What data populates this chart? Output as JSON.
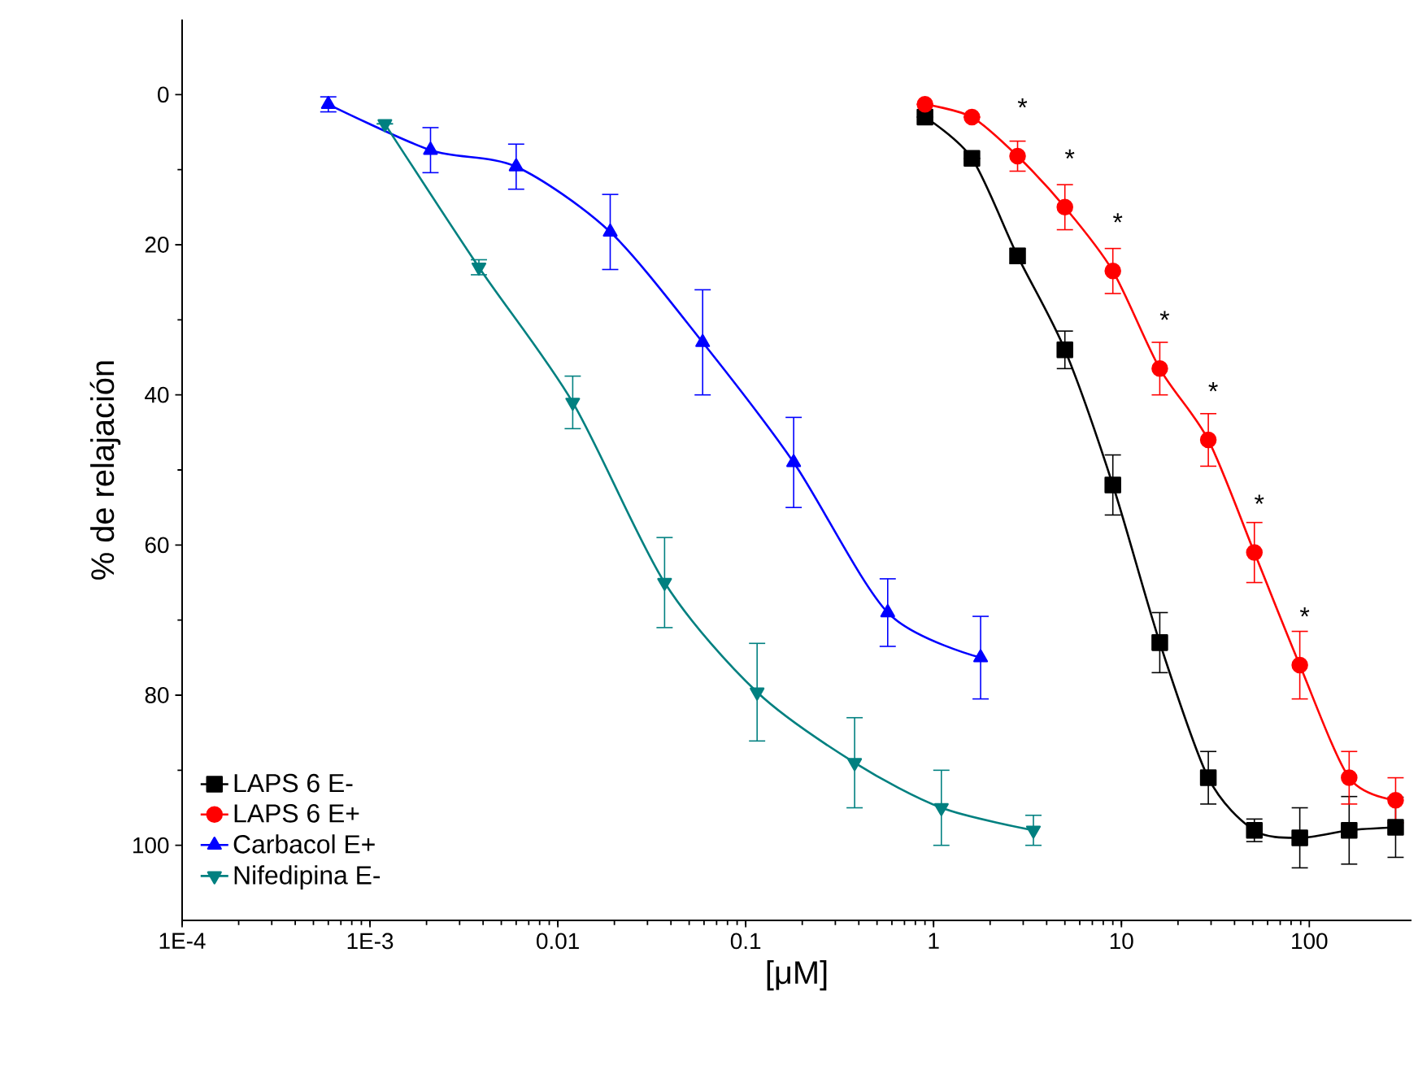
{
  "chart_data": {
    "type": "line",
    "xlabel": "[μM]",
    "ylabel": "% de relajación",
    "log": "x",
    "legend": "bottom left",
    "line_style": "solid",
    "xlim": [
      0.0001,
      350
    ],
    "ylim": [
      110,
      -10
    ],
    "xticks": [
      {
        "value": 0.0001,
        "label": "1E-4"
      },
      {
        "value": 0.001,
        "label": "1E-3"
      },
      0.01,
      0.1,
      1,
      10,
      100
    ],
    "yticks": [
      0,
      20,
      40,
      60,
      80,
      100
    ],
    "series": [
      {
        "name": "LAPS 6 E-",
        "color": "#000000",
        "marker": "square",
        "x": [
          0.9,
          1.6,
          2.8,
          5,
          9,
          16,
          29,
          51,
          89,
          163,
          288
        ],
        "values": [
          3,
          8.5,
          21.5,
          34,
          52,
          73,
          91,
          98,
          99,
          98,
          97.6
        ],
        "errors": [
          null,
          null,
          1,
          2.5,
          4,
          4,
          3.5,
          1.5,
          4,
          4.5,
          4
        ]
      },
      {
        "name": "LAPS 6 E+",
        "color": "#ff0000",
        "marker": "circle",
        "x": [
          0.9,
          1.6,
          2.8,
          5,
          9,
          16,
          29,
          51,
          89,
          163,
          288
        ],
        "values": [
          1.3,
          3,
          8.2,
          15,
          23.5,
          36.5,
          46,
          61,
          76,
          91,
          94
        ],
        "errors": [
          null,
          null,
          2,
          3,
          3,
          3.5,
          3.5,
          4,
          4.5,
          3.5,
          3
        ]
      },
      {
        "name": "Carbacol E+",
        "color": "#0000ff",
        "marker": "triangle",
        "x": [
          0.0006,
          0.0021,
          0.006,
          0.019,
          0.059,
          0.18,
          0.57,
          1.78
        ],
        "values": [
          1.3,
          7.4,
          9.6,
          18.3,
          33,
          49,
          69,
          75
        ],
        "errors": [
          1,
          3,
          3,
          5,
          7,
          6,
          4.5,
          5.5
        ]
      },
      {
        "name": "Nifedipina E-",
        "color": "#008080",
        "marker": "triangle-down",
        "x": [
          0.0012,
          0.0038,
          0.012,
          0.037,
          0.115,
          0.38,
          1.1,
          3.4
        ],
        "values": [
          3.9,
          23,
          41,
          65,
          79.6,
          89,
          95,
          98
        ],
        "errors": [
          null,
          1,
          3.5,
          6,
          6.5,
          6,
          5,
          2
        ]
      }
    ],
    "annotations": [
      {
        "text": "*",
        "x": 2.8,
        "y": 8.2
      },
      {
        "text": "*",
        "x": 5,
        "y": 15
      },
      {
        "text": "*",
        "x": 9,
        "y": 23.5
      },
      {
        "text": "*",
        "x": 16,
        "y": 36.5
      },
      {
        "text": "*",
        "x": 29,
        "y": 46
      },
      {
        "text": "*",
        "x": 51,
        "y": 61
      },
      {
        "text": "*",
        "x": 89,
        "y": 76
      }
    ]
  }
}
